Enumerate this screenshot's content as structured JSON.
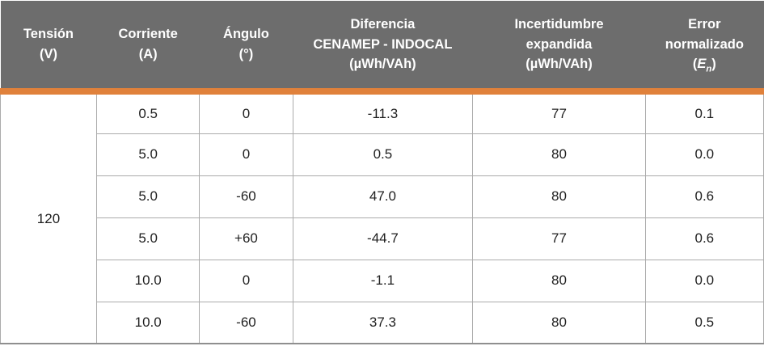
{
  "colors": {
    "header_background": "#6d6d6d",
    "header_text": "#ffffff",
    "accent_orange": "#e0813b",
    "cell_border": "#ababab",
    "outer_bottom_border": "#8f8f8f",
    "body_text": "#1f1f1f"
  },
  "table": {
    "headers": {
      "tension": {
        "lines": [
          "Tensión",
          "(V)"
        ]
      },
      "corriente": {
        "lines": [
          "Corriente",
          "(A)"
        ]
      },
      "angulo": {
        "lines": [
          "Ángulo",
          "(°)"
        ]
      },
      "diferencia": {
        "lines": [
          "Diferencia",
          "CENAMEP - INDOCAL",
          "(µWh/VAh)"
        ]
      },
      "incertidumbre": {
        "lines": [
          "Incertidumbre",
          "expandida",
          "(µWh/VAh)"
        ]
      },
      "error_normalizado": {
        "lines": [
          "Error",
          "normalizado"
        ],
        "symbol_open": "(",
        "symbol_letter": "E",
        "symbol_sub": "n",
        "symbol_close": ")"
      }
    },
    "tension_value": "120",
    "rows": [
      {
        "corriente": "0.5",
        "angulo": "0",
        "diferencia": "-11.3",
        "incertidumbre": "77",
        "error_normalizado": "0.1"
      },
      {
        "corriente": "5.0",
        "angulo": "0",
        "diferencia": "0.5",
        "incertidumbre": "80",
        "error_normalizado": "0.0"
      },
      {
        "corriente": "5.0",
        "angulo": "-60",
        "diferencia": "47.0",
        "incertidumbre": "80",
        "error_normalizado": "0.6"
      },
      {
        "corriente": "5.0",
        "angulo": "+60",
        "diferencia": "-44.7",
        "incertidumbre": "77",
        "error_normalizado": "0.6"
      },
      {
        "corriente": "10.0",
        "angulo": "0",
        "diferencia": "-1.1",
        "incertidumbre": "80",
        "error_normalizado": "0.0"
      },
      {
        "corriente": "10.0",
        "angulo": "-60",
        "diferencia": "37.3",
        "incertidumbre": "80",
        "error_normalizado": "0.5"
      }
    ]
  }
}
